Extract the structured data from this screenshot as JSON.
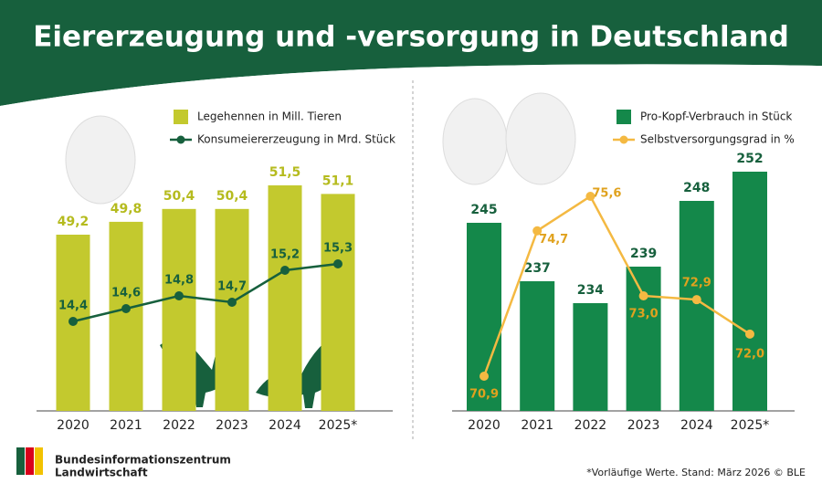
{
  "title": "Eiererzeugung und -versorgung in Deutschland",
  "footer": {
    "org_line1": "Bundesinformationszentrum",
    "org_line2": "Landwirtschaft",
    "note": "*Vorläufige Werte. Stand: März 2026 © BLE"
  },
  "chart_data": [
    {
      "type": "combo",
      "categories": [
        "2020",
        "2021",
        "2022",
        "2023",
        "2024",
        "2025*"
      ],
      "series": [
        {
          "name": "Legehennen in Mill. Tieren",
          "type": "bar",
          "color": "#c3c92e",
          "values": [
            49.2,
            49.8,
            50.4,
            50.4,
            51.5,
            51.1
          ],
          "value_labels": [
            "49,2",
            "49,8",
            "50,4",
            "50,4",
            "51,5",
            "51,1"
          ]
        },
        {
          "name": "Konsumeiererzeugung in Mrd. Stück",
          "type": "line",
          "color": "#17603d",
          "values": [
            14.4,
            14.6,
            14.8,
            14.7,
            15.2,
            15.3
          ],
          "value_labels": [
            "14,4",
            "14,6",
            "14,8",
            "14,7",
            "15,2",
            "15,3"
          ]
        }
      ]
    },
    {
      "type": "combo",
      "categories": [
        "2020",
        "2021",
        "2022",
        "2023",
        "2024",
        "2025*"
      ],
      "series": [
        {
          "name": "Pro-Kopf-Verbrauch in Stück",
          "type": "bar",
          "color": "#14884a",
          "values": [
            245,
            237,
            234,
            239,
            248,
            252
          ]
        },
        {
          "name": "Selbstversorgungsgrad in %",
          "type": "line",
          "color": "#f4b942",
          "values": [
            70.9,
            74.7,
            75.6,
            73.0,
            72.9,
            72.0
          ],
          "value_labels": [
            "70,9",
            "74,7",
            "75,6",
            "73,0",
            "72,9",
            "72,0"
          ]
        }
      ]
    }
  ]
}
